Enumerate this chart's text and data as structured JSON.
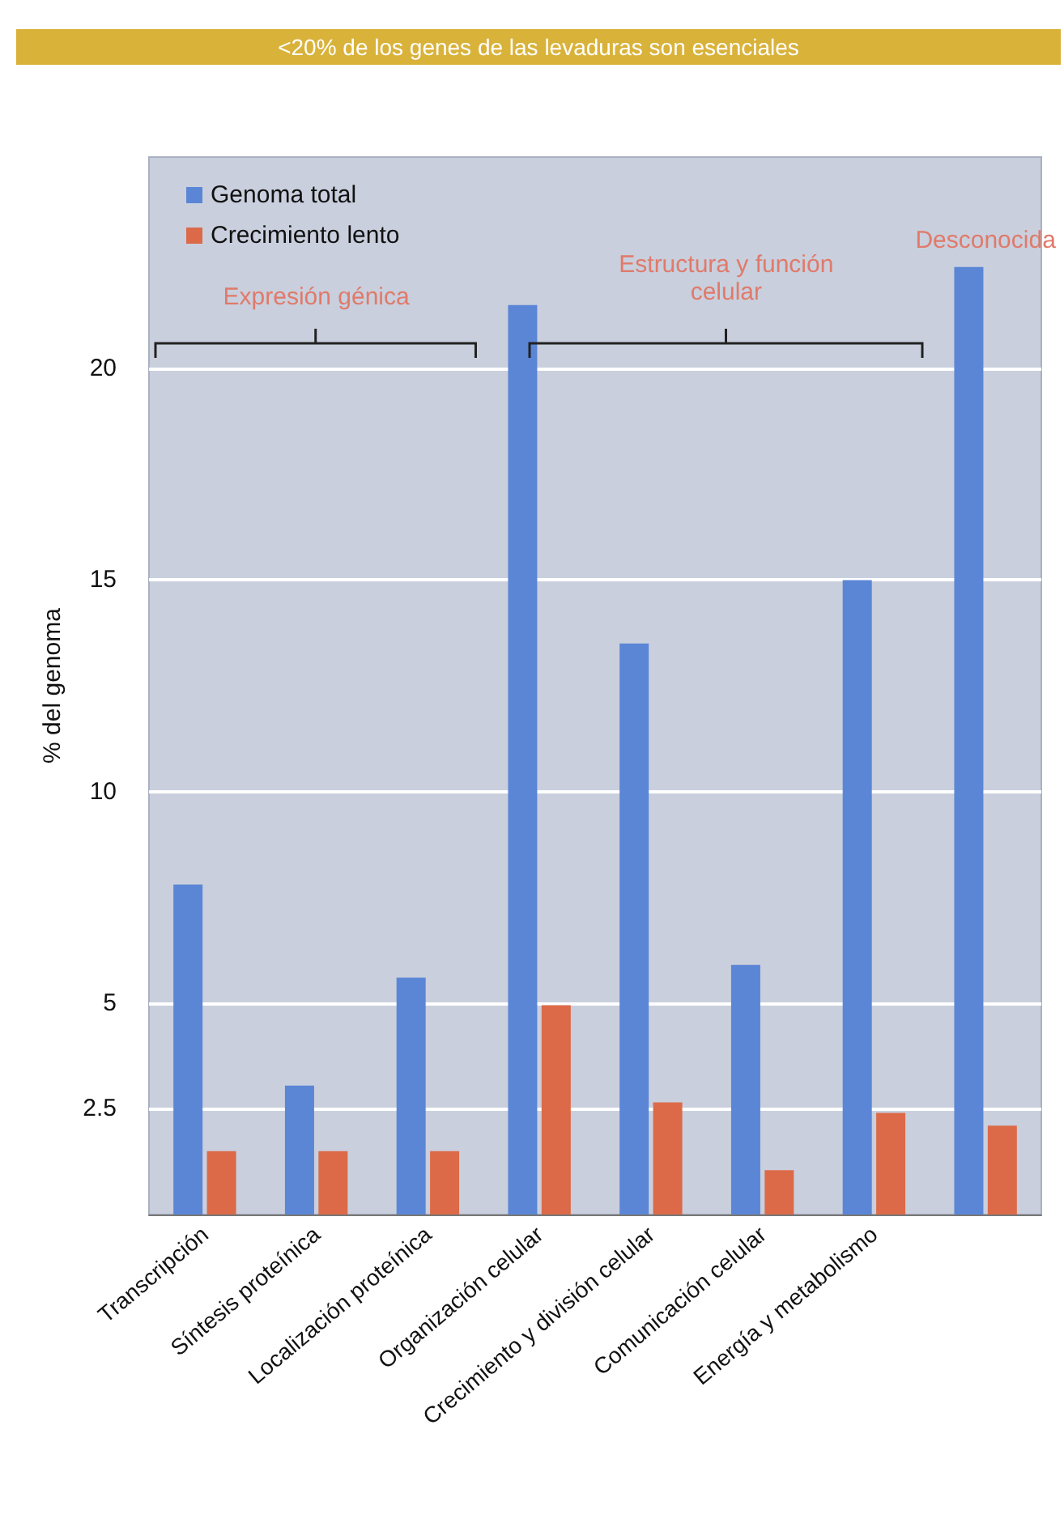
{
  "chart_data": {
    "type": "bar",
    "title": "<20% de los genes de las levaduras son esenciales",
    "categories": [
      "Transcripción",
      "Síntesis proteínica",
      "Localización proteínica",
      "Organización celular",
      "Crecimiento y división celular",
      "Comunicación celular",
      "Energía y metabolismo",
      null
    ],
    "series": [
      {
        "name": "Genoma total",
        "color": "#5b86d6",
        "values": [
          7.8,
          3.05,
          5.6,
          21.5,
          13.5,
          5.9,
          15.0,
          22.4
        ]
      },
      {
        "name": "Crecimiento lento",
        "color": "#dc6a48",
        "values": [
          1.5,
          1.5,
          1.5,
          4.95,
          2.65,
          1.05,
          2.4,
          2.1
        ]
      }
    ],
    "ylabel": "% del genoma",
    "ylim": [
      0,
      25
    ],
    "yticks": [
      2.5,
      5,
      10,
      15,
      20
    ],
    "annotations": [
      "Expresión génica",
      "Estructura y función celular",
      "Desconocida"
    ],
    "grid": "y",
    "legend": "top left"
  }
}
